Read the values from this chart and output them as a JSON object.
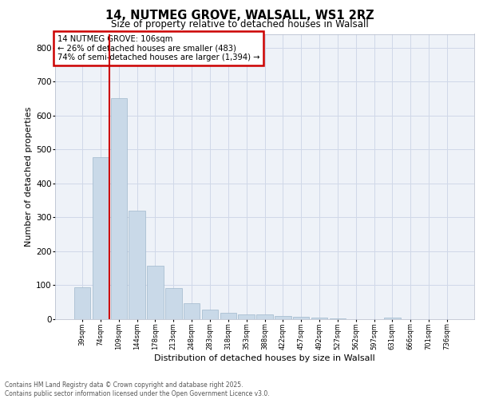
{
  "title1": "14, NUTMEG GROVE, WALSALL, WS1 2RZ",
  "title2": "Size of property relative to detached houses in Walsall",
  "xlabel": "Distribution of detached houses by size in Walsall",
  "ylabel": "Number of detached properties",
  "bar_labels": [
    "39sqm",
    "74sqm",
    "109sqm",
    "144sqm",
    "178sqm",
    "213sqm",
    "248sqm",
    "283sqm",
    "318sqm",
    "353sqm",
    "388sqm",
    "422sqm",
    "457sqm",
    "492sqm",
    "527sqm",
    "562sqm",
    "597sqm",
    "631sqm",
    "666sqm",
    "701sqm",
    "736sqm"
  ],
  "bar_values": [
    95,
    478,
    650,
    320,
    158,
    92,
    46,
    28,
    18,
    15,
    13,
    10,
    7,
    5,
    2,
    0,
    0,
    5,
    0,
    0,
    0
  ],
  "bar_color": "#c9d9e8",
  "bar_edge_color": "#a0b8cc",
  "annotation_title": "14 NUTMEG GROVE: 106sqm",
  "annotation_line1": "← 26% of detached houses are smaller (483)",
  "annotation_line2": "74% of semi-detached houses are larger (1,394) →",
  "annotation_box_color": "#ffffff",
  "annotation_box_edge": "#cc0000",
  "vline_color": "#cc0000",
  "grid_color": "#d0d8e8",
  "background_color": "#eef2f8",
  "footer1": "Contains HM Land Registry data © Crown copyright and database right 2025.",
  "footer2": "Contains public sector information licensed under the Open Government Licence v3.0.",
  "ylim": [
    0,
    840
  ],
  "yticks": [
    0,
    100,
    200,
    300,
    400,
    500,
    600,
    700,
    800
  ]
}
